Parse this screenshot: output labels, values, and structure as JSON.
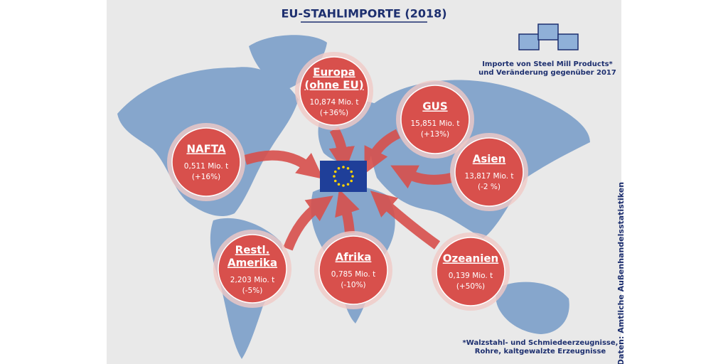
{
  "title": "EU-STAHLIMPORTE (2018)",
  "legend": {
    "lines": [
      "Importe von Steel Mill Products*",
      "und Veränderung gegenüber 2017"
    ]
  },
  "regions": [
    {
      "name": [
        "Europa",
        "(ohne EU)"
      ],
      "volume": "10,874 Mio. t",
      "change": "(+36%)"
    },
    {
      "name": [
        "GUS"
      ],
      "volume": "15,851 Mio. t",
      "change": "(+13%)"
    },
    {
      "name": [
        "NAFTA"
      ],
      "volume": "0,511 Mio. t",
      "change": "(+16%)"
    },
    {
      "name": [
        "Asien"
      ],
      "volume": "13,817 Mio. t",
      "change": "(-2 %)"
    },
    {
      "name": [
        "Restl.",
        "Amerika"
      ],
      "volume": "2,203 Mio. t",
      "change": "(-5%)"
    },
    {
      "name": [
        "Afrika"
      ],
      "volume": "0,785 Mio. t",
      "change": "(-10%)"
    },
    {
      "name": [
        "Ozeanien"
      ],
      "volume": "0,139 Mio. t",
      "change": "(+50%)"
    }
  ],
  "footnote": {
    "lines": [
      "*Walzstahl- und Schmiedeerzeugnisse,",
      "Rohre, kaltgewalzte Erzeugnisse"
    ]
  },
  "source": "Daten: Amtliche Außenhandelsstatistiken"
}
